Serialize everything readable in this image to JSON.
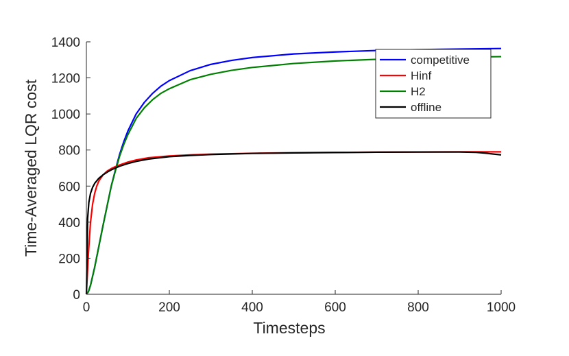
{
  "chart_data": {
    "type": "line",
    "title": "",
    "xlabel": "Timesteps",
    "ylabel": "Time-Averaged LQR cost",
    "xlim": [
      0,
      1000
    ],
    "ylim": [
      0,
      1400
    ],
    "xticks": [
      0,
      200,
      400,
      600,
      800,
      1000
    ],
    "yticks": [
      0,
      200,
      400,
      600,
      800,
      1000,
      1200,
      1400
    ],
    "grid": false,
    "legend_position": "top-right",
    "series": [
      {
        "name": "competitive",
        "color": "#0000ff",
        "x": [
          0,
          5,
          10,
          20,
          30,
          40,
          50,
          60,
          70,
          80,
          90,
          100,
          120,
          140,
          160,
          180,
          200,
          250,
          300,
          350,
          400,
          500,
          600,
          700,
          800,
          900,
          1000
        ],
        "y": [
          0,
          15,
          50,
          150,
          265,
          380,
          490,
          600,
          690,
          775,
          845,
          905,
          1000,
          1065,
          1115,
          1155,
          1185,
          1240,
          1275,
          1297,
          1313,
          1333,
          1344,
          1352,
          1357,
          1360,
          1363
        ]
      },
      {
        "name": "Hinf",
        "color": "#ff0000",
        "x": [
          0,
          5,
          10,
          15,
          20,
          25,
          30,
          40,
          50,
          60,
          70,
          80,
          100,
          120,
          150,
          200,
          250,
          300,
          400,
          500,
          600,
          700,
          800,
          900,
          950,
          1000
        ],
        "y": [
          0,
          230,
          400,
          500,
          560,
          600,
          628,
          662,
          683,
          697,
          708,
          717,
          733,
          745,
          757,
          767,
          773,
          777,
          782,
          785,
          787,
          788,
          789,
          790,
          790,
          790
        ]
      },
      {
        "name": "H2",
        "color": "#008000",
        "x": [
          0,
          5,
          10,
          20,
          30,
          40,
          50,
          60,
          70,
          80,
          90,
          100,
          120,
          140,
          160,
          180,
          200,
          250,
          300,
          350,
          400,
          500,
          600,
          700,
          800,
          900,
          1000
        ],
        "y": [
          0,
          15,
          50,
          150,
          265,
          380,
          490,
          600,
          685,
          765,
          830,
          885,
          975,
          1035,
          1080,
          1115,
          1140,
          1190,
          1220,
          1242,
          1258,
          1280,
          1294,
          1303,
          1310,
          1315,
          1318
        ]
      },
      {
        "name": "offline",
        "color": "#000000",
        "x": [
          0,
          3,
          6,
          10,
          15,
          20,
          30,
          40,
          50,
          60,
          70,
          80,
          100,
          120,
          150,
          200,
          250,
          300,
          400,
          500,
          600,
          700,
          800,
          900,
          940,
          960,
          980,
          1000
        ],
        "y": [
          0,
          420,
          510,
          560,
          593,
          615,
          643,
          662,
          677,
          690,
          700,
          710,
          725,
          737,
          750,
          763,
          770,
          775,
          781,
          784,
          786,
          788,
          789,
          789,
          787,
          783,
          778,
          773
        ]
      }
    ]
  }
}
